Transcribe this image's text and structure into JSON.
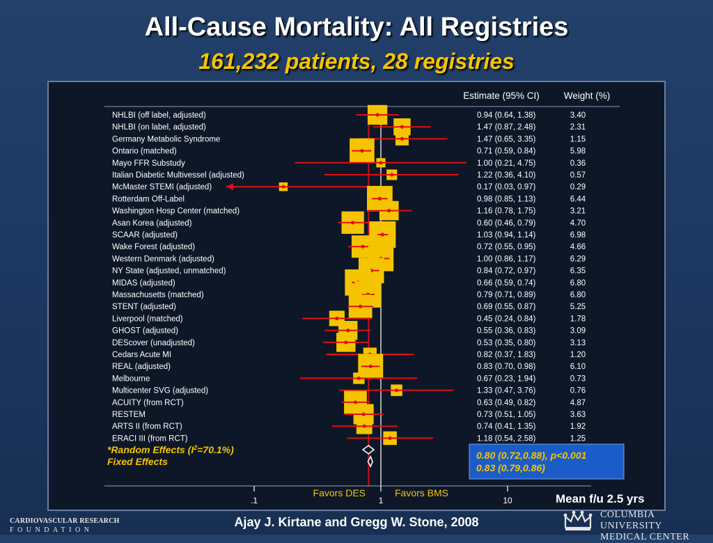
{
  "title": "All-Cause Mortality: All Registries",
  "subtitle": "161,232 patients, 28 registries",
  "table_headers": {
    "estimate": "Estimate (95% CI)",
    "weight": "Weight (%)"
  },
  "chart_data": {
    "type": "forest",
    "x_scale": "log",
    "xlim": [
      0.1,
      10
    ],
    "x_ticks": [
      {
        "value": 0.1,
        "label": ".1"
      },
      {
        "value": 1,
        "label": "1"
      },
      {
        "value": 10,
        "label": "10"
      }
    ],
    "reference_line": 1,
    "summary_line": 0.8,
    "rows": [
      {
        "label": "NHLBI (off label, adjusted)",
        "est": 0.94,
        "lo": 0.64,
        "hi": 1.38,
        "estimate_text": "0.94 (0.64, 1.38)",
        "weight": "3.40"
      },
      {
        "label": "NHLBI (on label, adjusted)",
        "est": 1.47,
        "lo": 0.87,
        "hi": 2.48,
        "estimate_text": "1.47 (0.87, 2.48)",
        "weight": "2.31"
      },
      {
        "label": "Germany Metabolic Syndrome",
        "est": 1.47,
        "lo": 0.65,
        "hi": 3.35,
        "estimate_text": "1.47 (0.65, 3.35)",
        "weight": "1.15"
      },
      {
        "label": "Ontario (matched)",
        "est": 0.71,
        "lo": 0.59,
        "hi": 0.84,
        "estimate_text": "0.71 (0.59, 0.84)",
        "weight": "5.98"
      },
      {
        "label": "Mayo FFR Substudy",
        "est": 1.0,
        "lo": 0.21,
        "hi": 4.75,
        "estimate_text": "1.00 (0.21, 4.75)",
        "weight": "0.36"
      },
      {
        "label": "Italian Diabetic Multivessel (adjusted)",
        "est": 1.22,
        "lo": 0.36,
        "hi": 4.1,
        "estimate_text": "1.22 (0.36, 4.10)",
        "weight": "0.57"
      },
      {
        "label": "McMaster STEMI (adjusted)",
        "est": 0.17,
        "lo": 0.03,
        "hi": 0.97,
        "estimate_text": "0.17 (0.03, 0.97)",
        "weight": "0.29"
      },
      {
        "label": "Rotterdam Off-Label",
        "est": 0.98,
        "lo": 0.85,
        "hi": 1.13,
        "estimate_text": "0.98 (0.85, 1.13)",
        "weight": "6.44"
      },
      {
        "label": "Washington Hosp Center (matched)",
        "est": 1.16,
        "lo": 0.78,
        "hi": 1.75,
        "estimate_text": "1.16 (0.78, 1.75)",
        "weight": "3.21"
      },
      {
        "label": "Asan Korea (adjusted)",
        "est": 0.6,
        "lo": 0.46,
        "hi": 0.79,
        "estimate_text": "0.60 (0.46, 0.79)",
        "weight": "4.70"
      },
      {
        "label": "SCAAR (adjusted)",
        "est": 1.03,
        "lo": 0.94,
        "hi": 1.14,
        "estimate_text": "1.03 (0.94, 1.14)",
        "weight": "6.98"
      },
      {
        "label": "Wake Forest (adjusted)",
        "est": 0.72,
        "lo": 0.55,
        "hi": 0.95,
        "estimate_text": "0.72 (0.55, 0.95)",
        "weight": "4.66"
      },
      {
        "label": "Western Denmark (adjusted)",
        "est": 1.0,
        "lo": 0.86,
        "hi": 1.17,
        "estimate_text": "1.00 (0.86, 1.17)",
        "weight": "6.29"
      },
      {
        "label": "NY State (adjusted, unmatched)",
        "est": 0.84,
        "lo": 0.72,
        "hi": 0.97,
        "estimate_text": "0.84 (0.72, 0.97)",
        "weight": "6.35"
      },
      {
        "label": "MIDAS (adjusted)",
        "est": 0.66,
        "lo": 0.59,
        "hi": 0.74,
        "estimate_text": "0.66 (0.59, 0.74)",
        "weight": "6.80"
      },
      {
        "label": "Massachusetts (matched)",
        "est": 0.79,
        "lo": 0.71,
        "hi": 0.89,
        "estimate_text": "0.79 (0.71, 0.89)",
        "weight": "6.80"
      },
      {
        "label": "STENT (adjusted)",
        "est": 0.69,
        "lo": 0.55,
        "hi": 0.87,
        "estimate_text": "0.69 (0.55, 0.87)",
        "weight": "5.25"
      },
      {
        "label": "Liverpool (matched)",
        "est": 0.45,
        "lo": 0.24,
        "hi": 0.84,
        "estimate_text": "0.45 (0.24, 0.84)",
        "weight": "1.78"
      },
      {
        "label": "GHOST (adjusted)",
        "est": 0.55,
        "lo": 0.36,
        "hi": 0.83,
        "estimate_text": "0.55 (0.36, 0.83)",
        "weight": "3.09"
      },
      {
        "label": "DEScover (unadjusted)",
        "est": 0.53,
        "lo": 0.35,
        "hi": 0.8,
        "estimate_text": "0.53 (0.35, 0.80)",
        "weight": "3.13"
      },
      {
        "label": "Cedars Acute MI",
        "est": 0.82,
        "lo": 0.37,
        "hi": 1.83,
        "estimate_text": "0.82 (0.37, 1.83)",
        "weight": "1.20"
      },
      {
        "label": "REAL (adjusted)",
        "est": 0.83,
        "lo": 0.7,
        "hi": 0.98,
        "estimate_text": "0.83 (0.70, 0.98)",
        "weight": "6.10"
      },
      {
        "label": "Melbourne",
        "est": 0.67,
        "lo": 0.23,
        "hi": 1.94,
        "estimate_text": "0.67 (0.23, 1.94)",
        "weight": "0.73"
      },
      {
        "label": "Multicenter SVG (adjusted)",
        "est": 1.33,
        "lo": 0.47,
        "hi": 3.76,
        "estimate_text": "1.33 (0.47, 3.76)",
        "weight": "0.76"
      },
      {
        "label": "ACUITY (from RCT)",
        "est": 0.63,
        "lo": 0.49,
        "hi": 0.82,
        "estimate_text": "0.63 (0.49, 0.82)",
        "weight": "4.87"
      },
      {
        "label": "RESTEM",
        "est": 0.73,
        "lo": 0.51,
        "hi": 1.05,
        "estimate_text": "0.73 (0.51, 1.05)",
        "weight": "3.63"
      },
      {
        "label": "ARTS II (from RCT)",
        "est": 0.74,
        "lo": 0.41,
        "hi": 1.35,
        "estimate_text": "0.74 (0.41, 1.35)",
        "weight": "1.92"
      },
      {
        "label": "ERACI III (from RCT)",
        "est": 1.18,
        "lo": 0.54,
        "hi": 2.58,
        "estimate_text": "1.18 (0.54, 2.58)",
        "weight": "1.25"
      }
    ],
    "summaries": [
      {
        "label_prefix": "*Random Effects (I",
        "label_sup": "2",
        "label_suffix": "=70.1%)",
        "est": 0.8,
        "lo": 0.72,
        "hi": 0.88,
        "result_text": "0.80 (0.72,0.88), p<0.001"
      },
      {
        "label": "Fixed Effects",
        "est": 0.83,
        "lo": 0.79,
        "hi": 0.86,
        "result_text": "0.83 (0.79,0.86)"
      }
    ],
    "favors_left": "Favors DES",
    "favors_right": "Favors BMS"
  },
  "footnote": "Mean f/u 2.5 yrs",
  "credit": "Ajay J. Kirtane and Gregg W. Stone, 2008",
  "logos": {
    "left_line1": "CARDIOVASCULAR RESEARCH",
    "left_line2": "FOUNDATION",
    "right_line1": "COLUMBIA UNIVERSITY",
    "right_line2": "MEDICAL CENTER"
  },
  "colors": {
    "box": "#f5c400",
    "ci_line": "#e01010",
    "ref_line": "#d8d8d8",
    "summary_line": "#c8101e",
    "text": "#ffffff",
    "accent_text": "#f5c400",
    "result_box": "#1c5cc8"
  }
}
